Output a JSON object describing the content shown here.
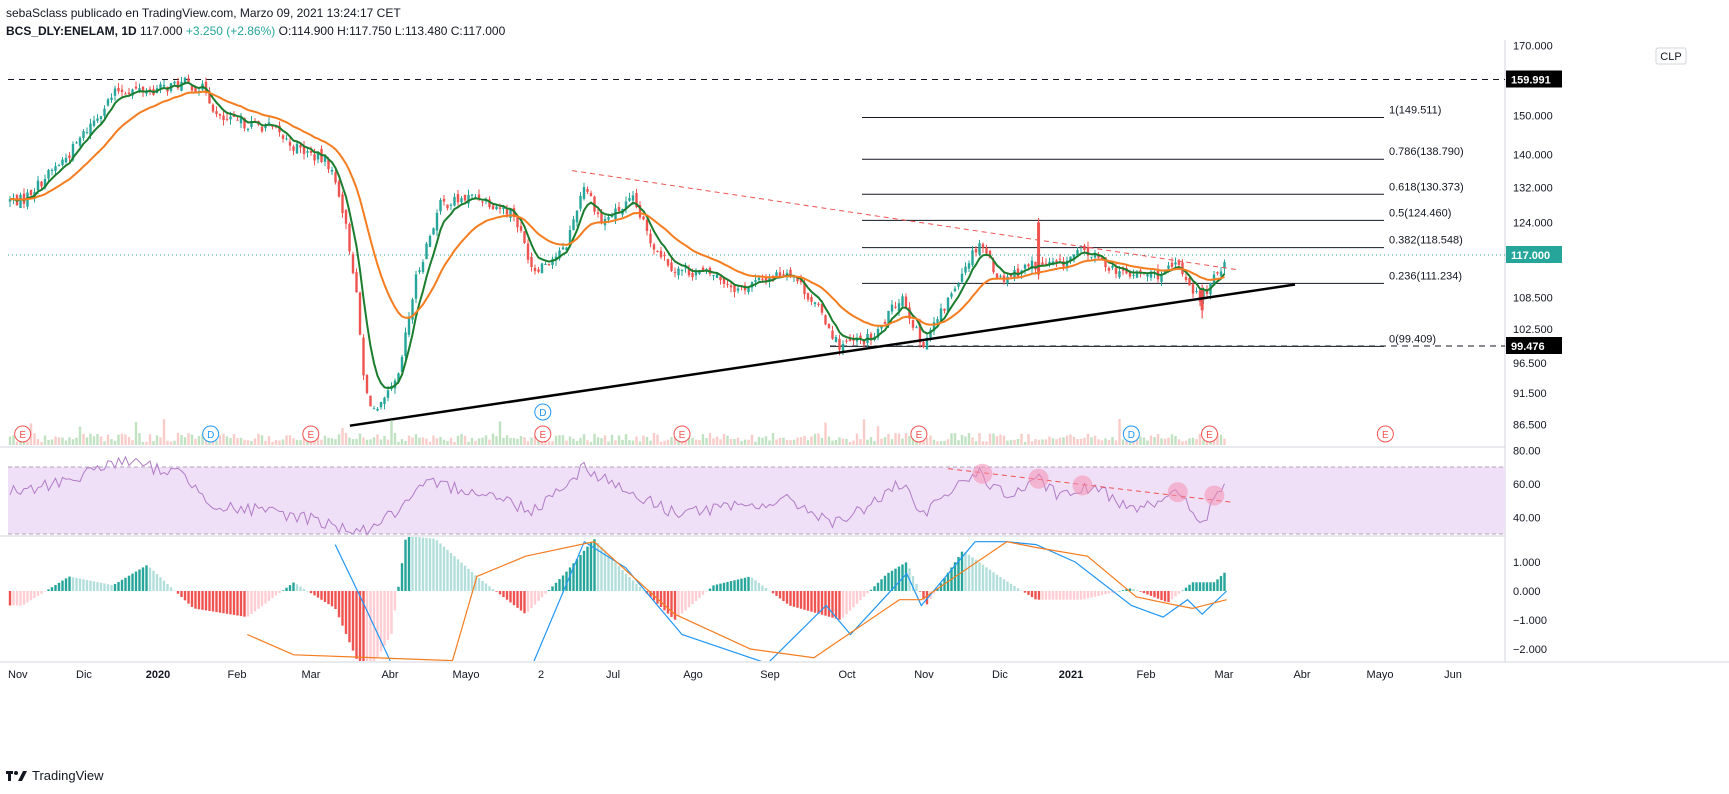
{
  "header": {
    "line1": "sebaSclass publicado en TradingView.com, Marzo 09, 2021 13:24:17 CET",
    "symbol": "BCS_DLY:ENELAM, 1D",
    "last": "117.000",
    "change": "+3.250 (+2.86%)",
    "ohlc": "O:114.900  H:117.750  L:113.480  C:117.000"
  },
  "brand": {
    "name": "TradingView",
    "icon": "tradingview-logo-icon"
  },
  "currency_badge": "CLP",
  "colors": {
    "bull": "#26a69a",
    "bear": "#ef5350",
    "ema_fast": "#1b7d2e",
    "ema_slow": "#f57c1f",
    "rsi": "#b07cc6",
    "rsi_band": "#efdff7",
    "macd": "#2196f3",
    "signal": "#f57c1f",
    "trend_support": "#000000",
    "trend_resistance": "#ef5350"
  },
  "chart_data": [
    {
      "type": "candlestick",
      "title": "BCS_DLY:ENELAM, 1D",
      "x_ticks": [
        "Nov",
        "Dic",
        "2020",
        "Feb",
        "Mar",
        "Abr",
        "Mayo",
        "2",
        "Jul",
        "Ago",
        "Sep",
        "Oct",
        "Nov",
        "Dic",
        "2021",
        "Feb",
        "Mar",
        "Abr",
        "Mayo",
        "Jun"
      ],
      "y_ticks": [
        "170.000",
        "150.000",
        "140.000",
        "132.000",
        "124.000",
        "108.500",
        "102.500",
        "96.500",
        "91.500",
        "86.500"
      ],
      "y_scale": "log",
      "ylim": [
        84,
        170
      ],
      "price_markers": [
        {
          "label": "159.991",
          "value": 159.991
        },
        {
          "label": "117.000",
          "value": 117.0
        },
        {
          "label": "99.476",
          "value": 99.476
        }
      ],
      "fibonacci": [
        {
          "label": "1(149.511)",
          "value": 149.511
        },
        {
          "label": "0.786(138.790)",
          "value": 138.79
        },
        {
          "label": "0.618(130.373)",
          "value": 130.373
        },
        {
          "label": "0.5(124.460)",
          "value": 124.46
        },
        {
          "label": "0.382(118.548)",
          "value": 118.548
        },
        {
          "label": "0.236(111.234)",
          "value": 111.234
        },
        {
          "label": "0(99.409)",
          "value": 99.409
        }
      ],
      "close_path": [
        [
          "2019-11-01",
          129
        ],
        [
          "2019-11-20",
          140
        ],
        [
          "2019-12-05",
          153
        ],
        [
          "2019-12-10",
          157
        ],
        [
          "2019-12-25",
          157
        ],
        [
          "2020-01-06",
          159
        ],
        [
          "2020-01-15",
          157
        ],
        [
          "2020-01-20",
          149
        ],
        [
          "2020-02-10",
          147
        ],
        [
          "2020-02-20",
          142
        ],
        [
          "2020-03-05",
          138
        ],
        [
          "2020-03-10",
          130
        ],
        [
          "2020-03-16",
          112
        ],
        [
          "2020-03-20",
          92
        ],
        [
          "2020-03-25",
          88
        ],
        [
          "2020-04-03",
          94
        ],
        [
          "2020-04-10",
          112
        ],
        [
          "2020-04-20",
          128
        ],
        [
          "2020-05-05",
          130
        ],
        [
          "2020-05-20",
          126
        ],
        [
          "2020-05-28",
          114
        ],
        [
          "2020-06-10",
          118
        ],
        [
          "2020-06-18",
          133
        ],
        [
          "2020-06-25",
          124
        ],
        [
          "2020-07-08",
          129
        ],
        [
          "2020-07-15",
          120
        ],
        [
          "2020-07-25",
          114
        ],
        [
          "2020-08-10",
          113
        ],
        [
          "2020-08-20",
          110
        ],
        [
          "2020-09-10",
          114
        ],
        [
          "2020-09-25",
          104
        ],
        [
          "2020-09-30",
          99.5
        ],
        [
          "2020-10-15",
          101
        ],
        [
          "2020-10-26",
          109
        ],
        [
          "2020-11-03",
          99.6
        ],
        [
          "2020-11-12",
          106
        ],
        [
          "2020-11-20",
          114
        ],
        [
          "2020-11-27",
          120
        ],
        [
          "2020-12-05",
          112
        ],
        [
          "2020-12-18",
          115
        ],
        [
          "2020-12-30",
          115
        ],
        [
          "2021-01-08",
          118
        ],
        [
          "2021-01-25",
          113
        ],
        [
          "2021-02-10",
          113
        ],
        [
          "2021-02-16",
          115
        ],
        [
          "2021-02-25",
          108
        ],
        [
          "2021-03-03",
          112
        ],
        [
          "2021-03-08",
          117
        ]
      ],
      "spikes": [
        {
          "x": "2020-12-21",
          "open": 113,
          "high": 125,
          "low": 112,
          "close": 124
        },
        {
          "x": "2021-02-26",
          "open": 110,
          "high": 111,
          "low": 104.5,
          "close": 106
        }
      ],
      "series": [
        {
          "name": "",
          "color": "#1b7d2e"
        },
        {
          "name": "",
          "color": "#f57c1f"
        }
      ],
      "event_markers": [
        {
          "label": "E",
          "x": "2019-11-01"
        },
        {
          "label": "D",
          "x": "2020-01-17"
        },
        {
          "label": "E",
          "x": "2020-02-27"
        },
        {
          "label": "D",
          "x": "2020-06-01"
        },
        {
          "label": "E",
          "x": "2020-06-01"
        },
        {
          "label": "E",
          "x": "2020-07-28"
        },
        {
          "label": "E",
          "x": "2020-11-02"
        },
        {
          "label": "D",
          "x": "2021-01-28"
        },
        {
          "label": "E",
          "x": "2021-03-01"
        },
        {
          "label": "E",
          "x": "2021-05-12"
        }
      ],
      "trendlines": [
        {
          "name": "support",
          "from": [
            "2020-03-14",
            86.3
          ],
          "to": [
            "2021-04-05",
            111
          ]
        },
        {
          "name": "resistance",
          "from": [
            "2020-06-13",
            136
          ],
          "to": [
            "2021-03-12",
            114
          ]
        }
      ],
      "last_date": "2021-03-08",
      "last_close": 117.0
    },
    {
      "type": "line",
      "title": "RSI",
      "y_ticks": [
        "80.00",
        "60.00",
        "40.00"
      ],
      "ylim": [
        27,
        84
      ],
      "band": [
        30,
        70
      ],
      "values": [
        [
          "2019-11-01",
          55
        ],
        [
          "2019-11-25",
          65
        ],
        [
          "2019-12-10",
          74
        ],
        [
          "2020-01-05",
          66
        ],
        [
          "2020-01-20",
          46
        ],
        [
          "2020-02-05",
          44
        ],
        [
          "2020-02-25",
          40
        ],
        [
          "2020-03-10",
          34
        ],
        [
          "2020-03-20",
          32
        ],
        [
          "2020-04-03",
          44
        ],
        [
          "2020-04-15",
          60
        ],
        [
          "2020-05-05",
          56
        ],
        [
          "2020-05-28",
          44
        ],
        [
          "2020-06-18",
          70
        ],
        [
          "2020-07-10",
          52
        ],
        [
          "2020-07-25",
          43
        ],
        [
          "2020-08-20",
          46
        ],
        [
          "2020-09-10",
          50
        ],
        [
          "2020-09-30",
          36
        ],
        [
          "2020-10-26",
          60
        ],
        [
          "2020-11-03",
          40
        ],
        [
          "2020-11-25",
          68
        ],
        [
          "2020-12-08",
          52
        ],
        [
          "2020-12-21",
          62
        ],
        [
          "2020-12-30",
          52
        ],
        [
          "2021-01-12",
          58
        ],
        [
          "2021-01-28",
          46
        ],
        [
          "2021-02-16",
          54
        ],
        [
          "2021-02-26",
          36
        ],
        [
          "2021-03-03",
          50
        ],
        [
          "2021-03-08",
          60
        ]
      ],
      "divergence_markers": [
        [
          "2020-11-28",
          66
        ],
        [
          "2020-12-21",
          63
        ],
        [
          "2021-01-08",
          59
        ],
        [
          "2021-02-16",
          55
        ],
        [
          "2021-03-03",
          53
        ]
      ],
      "divergence_line": {
        "from": [
          "2020-11-14",
          69
        ],
        "to": [
          "2021-03-10",
          49
        ]
      }
    },
    {
      "type": "bar+line",
      "title": "MACD",
      "y_ticks": [
        "1.000",
        "0.000",
        "−1.000",
        "−2.000"
      ],
      "ylim": [
        -2.35,
        1.75
      ],
      "histogram": [
        [
          "2019-11-01",
          -0.5
        ],
        [
          "2019-11-20",
          0.5
        ],
        [
          "2019-12-08",
          0.2
        ],
        [
          "2019-12-22",
          0.9
        ],
        [
          "2020-01-10",
          -0.6
        ],
        [
          "2020-02-01",
          -0.9
        ],
        [
          "2020-02-20",
          0.3
        ],
        [
          "2020-03-08",
          -0.6
        ],
        [
          "2020-03-20",
          -3.0
        ],
        [
          "2020-03-31",
          -1.5
        ],
        [
          "2020-04-06",
          1.9
        ],
        [
          "2020-04-18",
          1.8
        ],
        [
          "2020-05-05",
          0.5
        ],
        [
          "2020-05-25",
          -0.8
        ],
        [
          "2020-06-10",
          0.6
        ],
        [
          "2020-06-22",
          1.8
        ],
        [
          "2020-07-05",
          0.6
        ],
        [
          "2020-07-25",
          -1.0
        ],
        [
          "2020-08-10",
          0.2
        ],
        [
          "2020-08-25",
          0.5
        ],
        [
          "2020-09-10",
          -0.5
        ],
        [
          "2020-10-01",
          -1.0
        ],
        [
          "2020-10-20",
          0.6
        ],
        [
          "2020-10-28",
          1.0
        ],
        [
          "2020-11-05",
          -0.5
        ],
        [
          "2020-11-20",
          1.4
        ],
        [
          "2020-12-05",
          0.5
        ],
        [
          "2020-12-20",
          -0.3
        ],
        [
          "2021-01-08",
          -0.3
        ],
        [
          "2021-01-28",
          0.1
        ],
        [
          "2021-02-12",
          -0.4
        ],
        [
          "2021-02-22",
          0.3
        ],
        [
          "2021-03-03",
          0.3
        ],
        [
          "2021-03-08",
          0.7
        ]
      ],
      "macd_line": [
        [
          "2020-03-08",
          1.6
        ],
        [
          "2020-03-20",
          -0.5
        ],
        [
          "2020-03-31",
          -2.5
        ],
        [
          "2020-05-28",
          -2.5
        ],
        [
          "2020-06-18",
          1.7
        ],
        [
          "2020-07-05",
          0.8
        ],
        [
          "2020-07-28",
          -1.5
        ],
        [
          "2020-09-01",
          -2.5
        ],
        [
          "2020-09-25",
          -0.5
        ],
        [
          "2020-10-05",
          -1.5
        ],
        [
          "2020-10-28",
          0.6
        ],
        [
          "2020-11-03",
          -0.5
        ],
        [
          "2020-11-25",
          1.7
        ],
        [
          "2020-12-08",
          1.7
        ],
        [
          "2020-12-20",
          1.6
        ],
        [
          "2021-01-05",
          1.0
        ],
        [
          "2021-01-28",
          -0.5
        ],
        [
          "2021-02-10",
          -0.9
        ],
        [
          "2021-02-20",
          -0.3
        ],
        [
          "2021-02-26",
          -0.8
        ],
        [
          "2021-03-08",
          0.0
        ]
      ],
      "signal_line": [
        [
          "2020-02-01",
          -1.5
        ],
        [
          "2020-02-20",
          -2.2
        ],
        [
          "2020-04-25",
          -2.4
        ],
        [
          "2020-05-05",
          0.5
        ],
        [
          "2020-05-25",
          1.2
        ],
        [
          "2020-06-22",
          1.7
        ],
        [
          "2020-07-25",
          -0.8
        ],
        [
          "2020-08-25",
          -2.0
        ],
        [
          "2020-09-20",
          -2.3
        ],
        [
          "2020-10-25",
          -0.3
        ],
        [
          "2020-11-03",
          -0.3
        ],
        [
          "2020-12-08",
          1.7
        ],
        [
          "2020-12-20",
          1.5
        ],
        [
          "2021-01-10",
          1.2
        ],
        [
          "2021-01-30",
          -0.2
        ],
        [
          "2021-02-10",
          -0.4
        ],
        [
          "2021-02-22",
          -0.6
        ],
        [
          "2021-03-08",
          -0.3
        ]
      ]
    }
  ]
}
